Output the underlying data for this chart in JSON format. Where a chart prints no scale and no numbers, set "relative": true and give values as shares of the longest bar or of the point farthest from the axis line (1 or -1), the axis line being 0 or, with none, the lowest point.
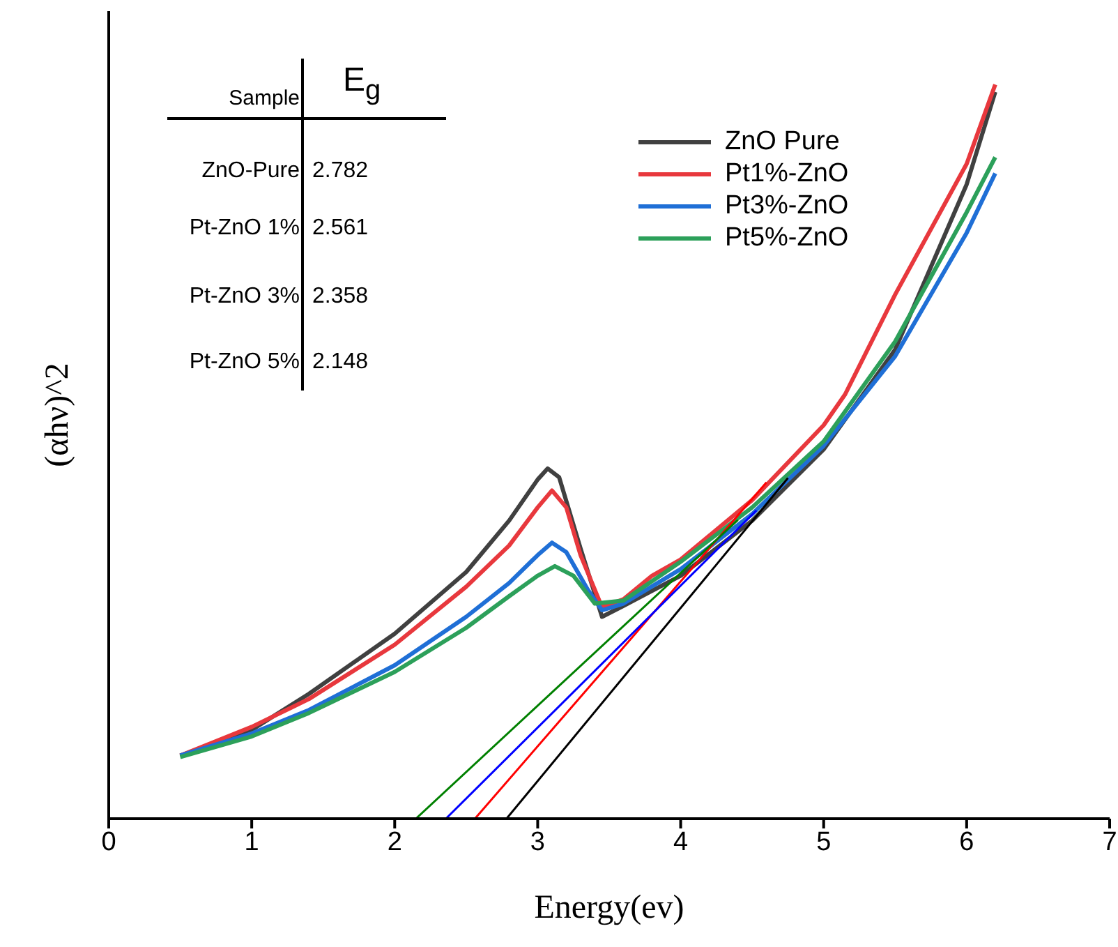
{
  "chart_data": {
    "type": "line",
    "xlabel": "Energy(ev)",
    "ylabel": "(αhν)^2",
    "relative": true,
    "xlim": [
      0,
      7
    ],
    "xticks": [
      0,
      1,
      2,
      3,
      4,
      5,
      6,
      7
    ],
    "grid": false,
    "legend": "top right",
    "marker": "none",
    "line_style": "solid",
    "annotations": [
      "Sample",
      "E$_{g}$",
      "ZnO-Pure",
      "2.782",
      "Pt-ZnO 1%",
      "2.561",
      "Pt-ZnO 3%",
      "2.358",
      "Pt-ZnO 5%",
      "2.148"
    ],
    "series": [
      {
        "name": "ZnO Pure",
        "color": "#404040",
        "x": [
          0.5,
          1.0,
          1.4,
          2.0,
          2.5,
          2.8,
          3.0,
          3.07,
          3.15,
          3.3,
          3.45,
          3.6,
          4.0,
          4.5,
          5.0,
          5.5,
          6.0,
          6.2
        ],
        "values": [
          0.086,
          0.121,
          0.17,
          0.252,
          0.336,
          0.406,
          0.462,
          0.477,
          0.465,
          0.368,
          0.275,
          0.29,
          0.331,
          0.406,
          0.503,
          0.639,
          0.864,
          0.99
        ]
      },
      {
        "name": "Pt1%-ZnO",
        "color": "#e8383d",
        "x": [
          0.5,
          1.0,
          1.4,
          2.0,
          2.5,
          2.8,
          3.0,
          3.1,
          3.2,
          3.3,
          3.45,
          3.6,
          3.8,
          4.0,
          4.5,
          5.0,
          5.15,
          5.5,
          6.0,
          6.2
        ],
        "values": [
          0.086,
          0.125,
          0.163,
          0.237,
          0.316,
          0.372,
          0.424,
          0.447,
          0.424,
          0.359,
          0.288,
          0.299,
          0.331,
          0.353,
          0.434,
          0.536,
          0.578,
          0.714,
          0.892,
          1.0
        ]
      },
      {
        "name": "Pt3%-ZnO",
        "color": "#1f6fd6",
        "x": [
          0.5,
          1.0,
          1.4,
          2.0,
          2.5,
          2.8,
          3.0,
          3.1,
          3.2,
          3.35,
          3.45,
          3.6,
          4.0,
          4.5,
          5.0,
          5.5,
          6.0,
          6.2
        ],
        "values": [
          0.086,
          0.116,
          0.148,
          0.209,
          0.275,
          0.321,
          0.359,
          0.376,
          0.363,
          0.312,
          0.284,
          0.293,
          0.34,
          0.415,
          0.508,
          0.63,
          0.798,
          0.879
        ]
      },
      {
        "name": "Pt5%-ZnO",
        "color": "#2ca05a",
        "x": [
          0.5,
          1.0,
          1.4,
          2.0,
          2.5,
          2.8,
          3.0,
          3.12,
          3.25,
          3.4,
          3.6,
          4.0,
          4.5,
          5.0,
          5.5,
          6.0,
          6.2
        ],
        "values": [
          0.084,
          0.112,
          0.144,
          0.2,
          0.26,
          0.303,
          0.331,
          0.344,
          0.331,
          0.293,
          0.297,
          0.35,
          0.424,
          0.514,
          0.65,
          0.826,
          0.901
        ]
      },
      {
        "color": "#000000",
        "x": [
          2.782,
          4.75
        ],
        "values": [
          0,
          0.464
        ]
      },
      {
        "color": "#ff0000",
        "x": [
          2.561,
          4.6
        ],
        "values": [
          0,
          0.458
        ]
      },
      {
        "color": "#0000ff",
        "x": [
          2.358,
          4.53
        ],
        "values": [
          0,
          0.42
        ]
      },
      {
        "color": "#008000",
        "x": [
          2.148,
          4.4
        ],
        "values": [
          0,
          0.407
        ]
      }
    ]
  }
}
